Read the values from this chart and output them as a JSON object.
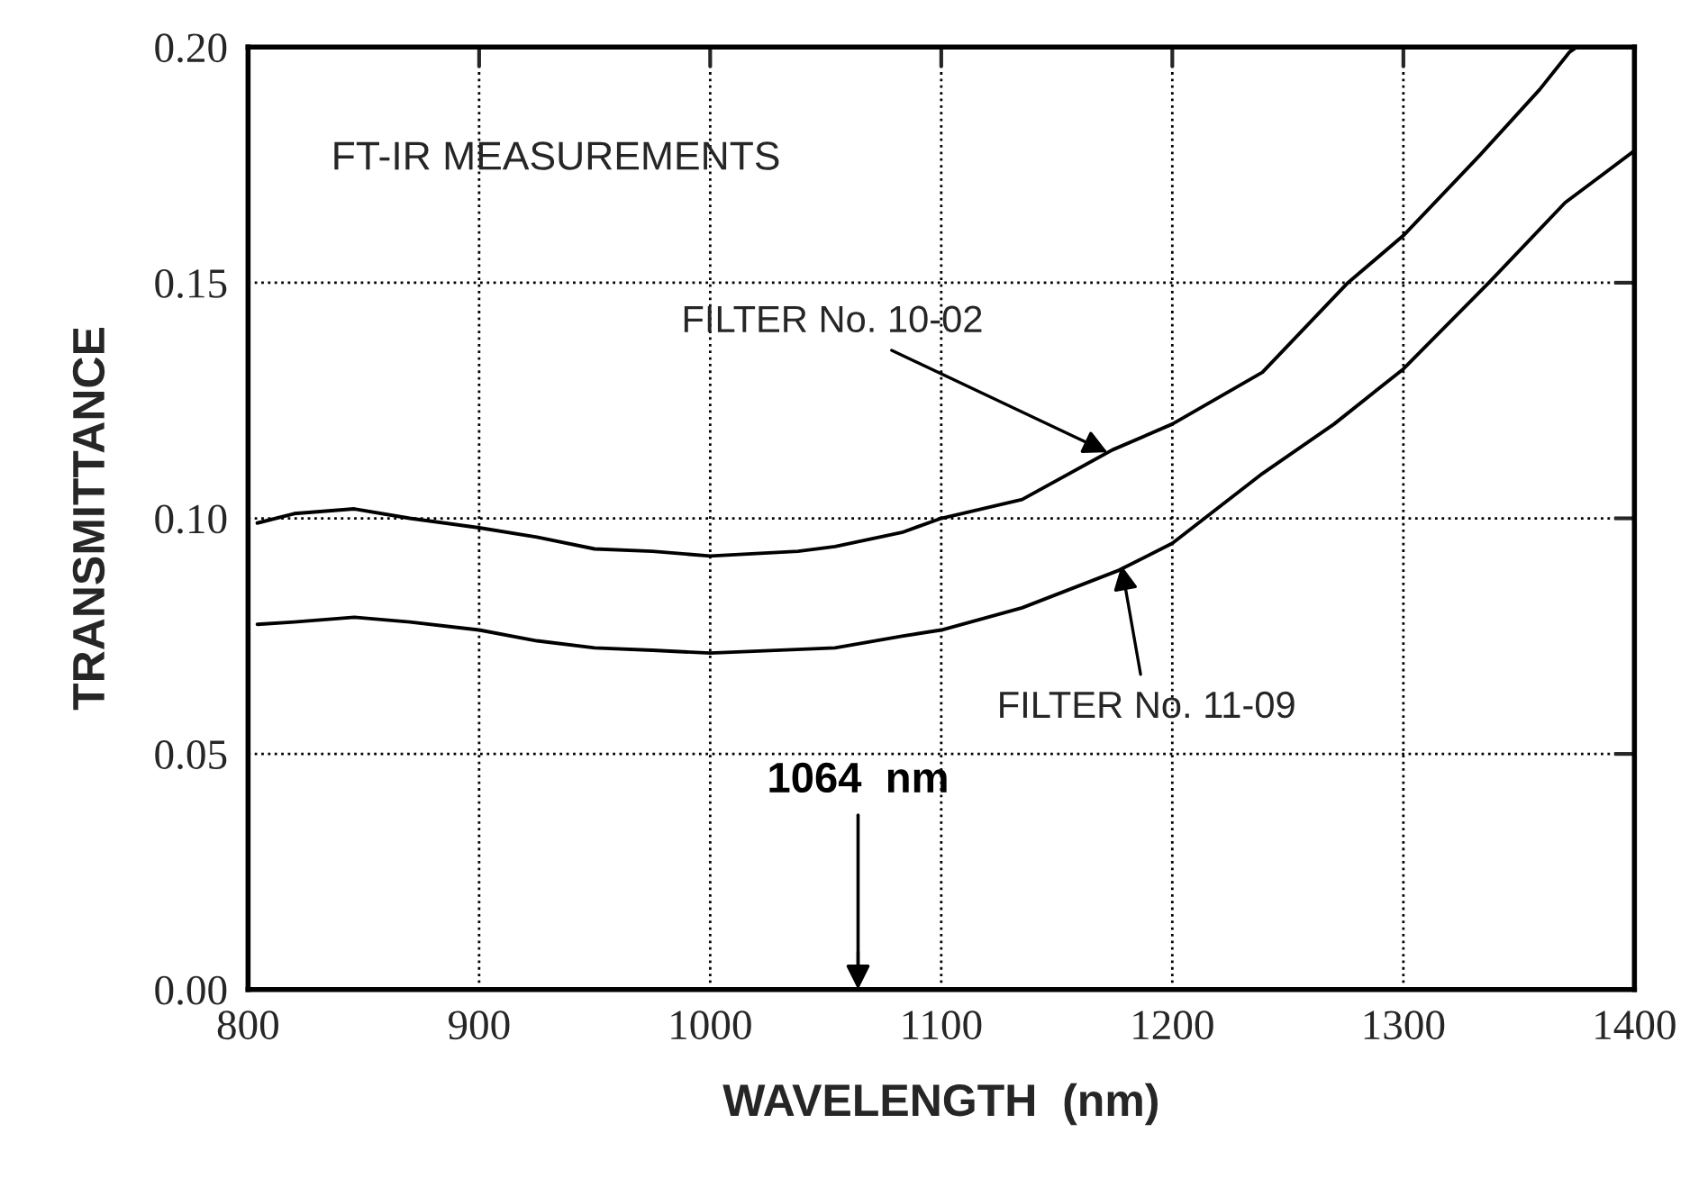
{
  "chart_data": {
    "type": "line",
    "xlabel": "WAVELENGTH  (nm)",
    "ylabel": "TRANSMITTANCE",
    "xlim": [
      800,
      1400
    ],
    "xticks": [
      800,
      900,
      1000,
      1100,
      1200,
      1300,
      1400
    ],
    "ylim": [
      0,
      0.2
    ],
    "yticks": [
      {
        "value": 0,
        "label": "0.00"
      },
      {
        "value": 0.05,
        "label": "0.05"
      },
      {
        "value": 0.1,
        "label": "0.10"
      },
      {
        "value": 0.15,
        "label": "0.15"
      },
      {
        "value": 0.2,
        "label": "0.20"
      }
    ],
    "grid": true,
    "line_style": "solid",
    "marker": "none",
    "series": [
      {
        "color": "#000000",
        "x": [
          804,
          820,
          846,
          870,
          900,
          925,
          950,
          975,
          1000,
          1038,
          1054,
          1083,
          1100,
          1135,
          1174,
          1200,
          1239,
          1276,
          1300,
          1333,
          1359,
          1372,
          1375
        ],
        "values": [
          0.099,
          0.101,
          0.102,
          0.1,
          0.098,
          0.096,
          0.0935,
          0.093,
          0.092,
          0.093,
          0.094,
          0.097,
          0.1,
          0.104,
          0.1145,
          0.12,
          0.131,
          0.15,
          0.16,
          0.177,
          0.191,
          0.199,
          0.2
        ]
      },
      {
        "color": "#000000",
        "x": [
          804,
          820,
          846,
          870,
          900,
          925,
          950,
          975,
          1000,
          1054,
          1083,
          1100,
          1135,
          1177,
          1200,
          1239,
          1270,
          1300,
          1337,
          1370,
          1400
        ],
        "values": [
          0.0775,
          0.078,
          0.079,
          0.078,
          0.0763,
          0.074,
          0.0725,
          0.072,
          0.0714,
          0.0725,
          0.075,
          0.0763,
          0.081,
          0.089,
          0.0947,
          0.1095,
          0.12,
          0.1317,
          0.15,
          0.167,
          0.178
        ]
      }
    ],
    "annotations": [
      "FT-IR MEASUREMENTS",
      {
        "text": "FILTER No. 10-02",
        "x": 1172,
        "y": 0.114
      },
      {
        "text": "FILTER No. 11-09",
        "x": 1178,
        "y": 0.09
      }
    ],
    "ref_lines": [
      {
        "axis": "x",
        "value": 1064,
        "label": "1064  nm",
        "color": "#000000"
      }
    ]
  }
}
